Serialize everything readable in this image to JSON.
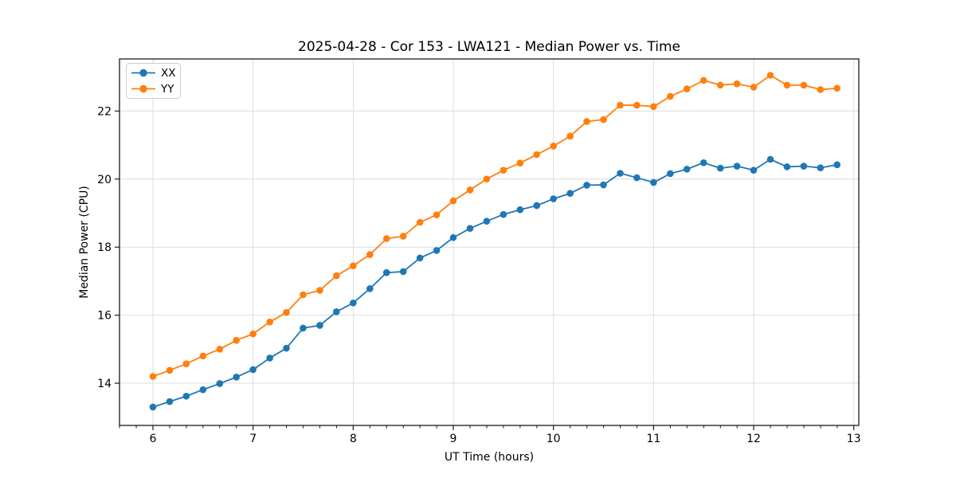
{
  "chart_data": {
    "type": "line",
    "title": "2025-04-28 - Cor 153 - LWA121 - Median Power vs. Time",
    "xlabel": "UT Time (hours)",
    "ylabel": "Median Power (CPU)",
    "grid": true,
    "legend_position": "upper left",
    "xlim": [
      5.666,
      13.05
    ],
    "ylim": [
      12.76,
      23.53
    ],
    "xticks": [
      6,
      7,
      8,
      9,
      10,
      11,
      12,
      13
    ],
    "yticks": [
      14,
      16,
      18,
      20,
      22
    ],
    "x_minor_tick_interval": 0.1667,
    "x": [
      6.0,
      6.167,
      6.333,
      6.5,
      6.667,
      6.833,
      7.0,
      7.167,
      7.333,
      7.5,
      7.667,
      7.833,
      8.0,
      8.167,
      8.333,
      8.5,
      8.667,
      8.833,
      9.0,
      9.167,
      9.333,
      9.5,
      9.667,
      9.833,
      10.0,
      10.167,
      10.333,
      10.5,
      10.667,
      10.833,
      11.0,
      11.167,
      11.333,
      11.5,
      11.667,
      11.833,
      12.0,
      12.167,
      12.333,
      12.5,
      12.667,
      12.833
    ],
    "series": [
      {
        "name": "XX",
        "color": "#1f77b4",
        "marker": "circle",
        "values": [
          13.3,
          13.46,
          13.62,
          13.81,
          13.99,
          14.18,
          14.4,
          14.74,
          15.03,
          15.62,
          15.7,
          16.1,
          16.36,
          16.78,
          17.25,
          17.28,
          17.68,
          17.9,
          18.28,
          18.55,
          18.76,
          18.96,
          19.1,
          19.22,
          19.42,
          19.58,
          19.82,
          19.83,
          20.17,
          20.04,
          19.9,
          20.16,
          20.29,
          20.48,
          20.32,
          20.38,
          20.26,
          20.58,
          20.36,
          20.38,
          20.33,
          20.42
        ]
      },
      {
        "name": "YY",
        "color": "#ff7f0e",
        "marker": "circle",
        "values": [
          14.2,
          14.38,
          14.57,
          14.8,
          15.0,
          15.26,
          15.45,
          15.8,
          16.08,
          16.6,
          16.73,
          17.16,
          17.45,
          17.78,
          18.25,
          18.32,
          18.73,
          18.95,
          19.36,
          19.68,
          20.0,
          20.26,
          20.47,
          20.72,
          20.97,
          21.26,
          21.69,
          21.75,
          22.17,
          22.17,
          22.13,
          22.43,
          22.65,
          22.9,
          22.76,
          22.8,
          22.7,
          23.05,
          22.76,
          22.76,
          22.63,
          22.67
        ]
      }
    ],
    "colors": {
      "grid": "#dcdcdc",
      "spine": "#1a1a1a",
      "background": "#ffffff",
      "legend_border": "#cccccc"
    }
  }
}
